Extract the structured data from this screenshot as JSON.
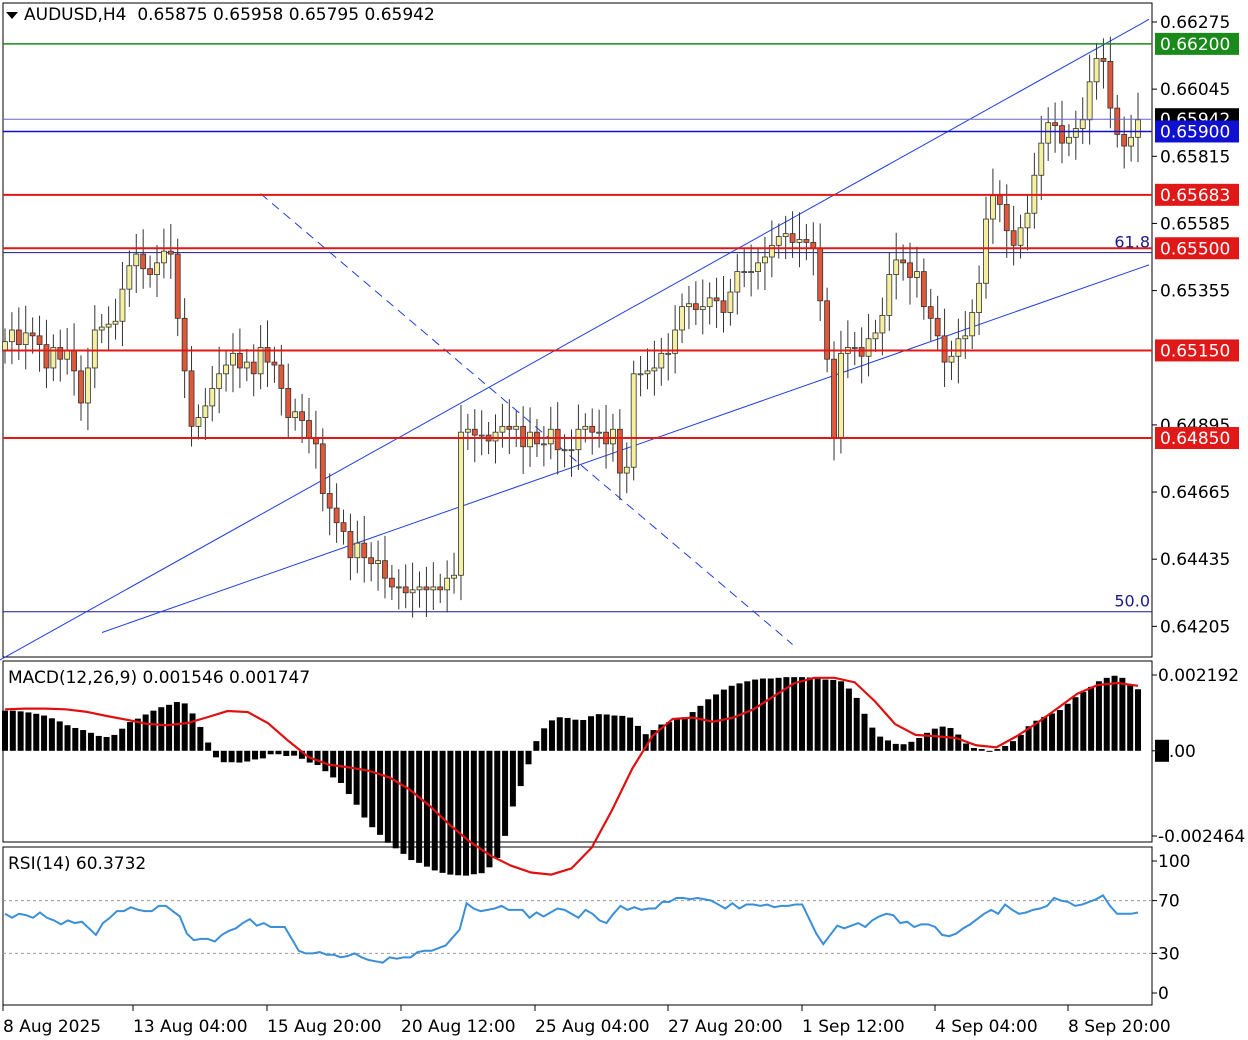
{
  "header": {
    "symbol": "AUDUSD,H4",
    "ohlc": [
      "0.65875",
      "0.65958",
      "0.65795",
      "0.65942"
    ]
  },
  "colors": {
    "bull_body": "#f5f0a0",
    "bear_body": "#e0583a",
    "wick": "#333333",
    "channel": "#1f3ee0",
    "level_red": "#e01818",
    "level_green": "#1a8a1a",
    "level_blue": "#1010d0",
    "fib_line": "#1a1a8a",
    "macd_hist": "#000000",
    "macd_signal": "#e01010",
    "rsi_line": "#3a8fd8"
  },
  "chart_data": [
    {
      "type": "candlestick",
      "title": "AUDUSD,H4",
      "ylim": [
        0.641,
        0.6634
      ],
      "price_ticks": [
        "0.66275",
        "0.66045",
        "0.65815",
        "0.65585",
        "0.65355",
        "0.64895",
        "0.64665",
        "0.64435",
        "0.64205"
      ],
      "x_ticks": [
        "8 Aug 2025",
        "13 Aug 04:00",
        "15 Aug 20:00",
        "20 Aug 12:00",
        "25 Aug 04:00",
        "27 Aug 20:00",
        "1 Sep 12:00",
        "4 Sep 04:00",
        "8 Sep 20:00"
      ],
      "levels": [
        {
          "label": "0.66200",
          "value": 0.662,
          "kind": "green"
        },
        {
          "label": "0.65942",
          "value": 0.65942,
          "kind": "current"
        },
        {
          "label": "0.65900",
          "value": 0.659,
          "kind": "blue"
        },
        {
          "label": "0.65683",
          "value": 0.65683,
          "kind": "red"
        },
        {
          "label": "0.65500",
          "value": 0.655,
          "kind": "red"
        },
        {
          "label": "0.65150",
          "value": 0.6515,
          "kind": "red"
        },
        {
          "label": "0.64850",
          "value": 0.6485,
          "kind": "red"
        }
      ],
      "fibonacci": [
        {
          "label": "61.8",
          "value": 0.65485
        },
        {
          "label": "50.0",
          "value": 0.64255
        }
      ],
      "channel": {
        "upper": [
          [
            0,
            0.6409
          ],
          [
            1149,
            0.66284
          ]
        ],
        "lower": [
          [
            102,
            0.64184
          ],
          [
            1149,
            0.65443
          ]
        ]
      },
      "trendline": [
        [
          37,
          0.65687
        ],
        [
          114,
          0.64143
        ]
      ],
      "closes": [
        0.6518,
        0.6522,
        0.6517,
        0.6521,
        0.652,
        0.6517,
        0.6509,
        0.6516,
        0.6512,
        0.6515,
        0.6508,
        0.6497,
        0.6509,
        0.6522,
        0.6523,
        0.6524,
        0.6525,
        0.6536,
        0.6544,
        0.6548,
        0.6543,
        0.6541,
        0.6545,
        0.6549,
        0.6548,
        0.6526,
        0.6508,
        0.6489,
        0.6492,
        0.6496,
        0.6502,
        0.6507,
        0.651,
        0.6514,
        0.6509,
        0.6511,
        0.6507,
        0.6516,
        0.6511,
        0.651,
        0.6502,
        0.6492,
        0.6494,
        0.6491,
        0.6485,
        0.6483,
        0.6466,
        0.6461,
        0.6456,
        0.6453,
        0.6444,
        0.6449,
        0.6444,
        0.6442,
        0.6443,
        0.6437,
        0.6434,
        0.6434,
        0.6432,
        0.6433,
        0.6434,
        0.6433,
        0.6434,
        0.6433,
        0.6437,
        0.6438,
        0.6487,
        0.6488,
        0.6486,
        0.6486,
        0.6484,
        0.6487,
        0.6489,
        0.6488,
        0.6489,
        0.6482,
        0.6487,
        0.6483,
        0.6483,
        0.6488,
        0.6481,
        0.6481,
        0.6481,
        0.6488,
        0.6489,
        0.6487,
        0.6487,
        0.6483,
        0.6488,
        0.6473,
        0.6475,
        0.6507,
        0.6507,
        0.6508,
        0.6509,
        0.6514,
        0.6514,
        0.6522,
        0.653,
        0.6531,
        0.6529,
        0.653,
        0.6533,
        0.6532,
        0.6528,
        0.6535,
        0.6542,
        0.6542,
        0.6542,
        0.6545,
        0.6547,
        0.6551,
        0.6554,
        0.6555,
        0.6552,
        0.6553,
        0.6552,
        0.655,
        0.6532,
        0.6512,
        0.6485,
        0.6514,
        0.6516,
        0.6516,
        0.6513,
        0.6519,
        0.6521,
        0.6527,
        0.6541,
        0.6546,
        0.6545,
        0.654,
        0.6542,
        0.653,
        0.6526,
        0.652,
        0.6511,
        0.6513,
        0.6519,
        0.652,
        0.6528,
        0.6538,
        0.656,
        0.6568,
        0.6565,
        0.6556,
        0.6551,
        0.6557,
        0.6562,
        0.6575,
        0.6586,
        0.6593,
        0.6592,
        0.6586,
        0.6588,
        0.6591,
        0.6594,
        0.6607,
        0.6615,
        0.6614,
        0.6598,
        0.6589,
        0.6585,
        0.6588,
        0.6594
      ],
      "highs_lows": "estimated from candle wicks"
    },
    {
      "type": "bar",
      "title": "MACD(12,26,9) 0.001546 0.001747",
      "name": "MACD(12,26,9)",
      "values_label": [
        "0.001546",
        "0.001747"
      ],
      "ylim": [
        -0.002464,
        0.002192
      ],
      "y_ticks": [
        "0.002192",
        "0.00",
        "-0.002464"
      ],
      "histogram": [
        0.00116,
        0.00116,
        0.00114,
        0.00111,
        0.00107,
        0.00102,
        0.00094,
        0.00085,
        0.00074,
        0.00066,
        0.0006,
        0.00052,
        0.00043,
        0.0004,
        0.00046,
        0.00064,
        0.00083,
        0.00093,
        0.00105,
        0.00116,
        0.00126,
        0.00133,
        0.00141,
        0.00137,
        0.00108,
        0.00069,
        0.00024,
        -0.00019,
        -0.00033,
        -0.00033,
        -0.00034,
        -0.00031,
        -0.00025,
        -0.00022,
        -0.0001,
        -0.0001,
        -0.00015,
        -0.00014,
        -0.00023,
        -0.00034,
        -0.00041,
        -0.00059,
        -0.00077,
        -0.00093,
        -0.00125,
        -0.00156,
        -0.00193,
        -0.00221,
        -0.00243,
        -0.00266,
        -0.00282,
        -0.00298,
        -0.00316,
        -0.00324,
        -0.00335,
        -0.00346,
        -0.00353,
        -0.00358,
        -0.0036,
        -0.00361,
        -0.00357,
        -0.00354,
        -0.00337,
        -0.0031,
        -0.00246,
        -0.00161,
        -0.00102,
        -0.00039,
        0.00028,
        0.00065,
        0.00088,
        0.00097,
        0.00095,
        0.0009,
        0.00089,
        0.001,
        0.00106,
        0.00105,
        0.00102,
        0.00101,
        0.00096,
        0.00072,
        0.00048,
        0.0006,
        0.00076,
        0.00083,
        0.00091,
        0.00097,
        0.00112,
        0.0013,
        0.00149,
        0.00163,
        0.00177,
        0.00188,
        0.00195,
        0.00201,
        0.00206,
        0.00209,
        0.00209,
        0.00211,
        0.00213,
        0.00213,
        0.00213,
        0.00212,
        0.00209,
        0.00206,
        0.00205,
        0.00201,
        0.0018,
        0.00153,
        0.00107,
        0.00067,
        0.00041,
        0.0003,
        0.0002,
        0.00019,
        0.00026,
        0.00037,
        0.00052,
        0.00064,
        0.0007,
        0.00066,
        0.00047,
        0.00021,
        8e-05,
        5e-05,
        -2e-05,
        5e-05,
        0.00014,
        0.00028,
        0.00046,
        0.00071,
        0.00087,
        0.00098,
        0.00108,
        0.00118,
        0.00136,
        0.00155,
        0.0017,
        0.00185,
        0.00201,
        0.00211,
        0.00217,
        0.00211,
        0.00193,
        0.00178
      ],
      "signal": [
        0.0012,
        0.00122,
        0.00122,
        0.0012,
        0.00113,
        0.00101,
        0.0009,
        0.00078,
        0.00074,
        0.0008,
        0.00097,
        0.00115,
        0.00112,
        0.0008,
        0.00029,
        -0.00018,
        -0.0004,
        -0.00048,
        -0.00058,
        -0.00077,
        -0.00112,
        -0.0016,
        -0.00215,
        -0.00264,
        -0.00303,
        -0.00332,
        -0.00352,
        -0.00358,
        -0.0034,
        -0.0028,
        -0.00172,
        -0.00052,
        0.00043,
        0.00092,
        0.00096,
        0.00084,
        0.00096,
        0.0012,
        0.00158,
        0.00195,
        0.00211,
        0.00211,
        0.00198,
        0.00143,
        0.00077,
        0.00046,
        0.00042,
        0.00037,
        0.00016,
        0.0001,
        0.00042,
        0.0008,
        0.00122,
        0.00165,
        0.0019,
        0.00196,
        0.00188
      ],
      "signal_note": "signal line sampled every third bar"
    },
    {
      "type": "line",
      "title": "RSI(14) 60.3732",
      "name": "RSI(14)",
      "value_label": "60.3732",
      "ylim": [
        0,
        100
      ],
      "y_ticks": [
        "100",
        "70",
        "30",
        "0"
      ],
      "reference_levels": [
        70,
        30
      ],
      "values": [
        60,
        57,
        60,
        59,
        57,
        61,
        57,
        55,
        52,
        55,
        53,
        54,
        49,
        44,
        53,
        57,
        62,
        62,
        65,
        63,
        62,
        62,
        66,
        66,
        62,
        58,
        45,
        40,
        41,
        41,
        39,
        44,
        47,
        49,
        53,
        56,
        51,
        53,
        50,
        50,
        50,
        41,
        32,
        30,
        30,
        31,
        29,
        29,
        27,
        28,
        30,
        27,
        25,
        24,
        23,
        27,
        26,
        27,
        27,
        31,
        32,
        32,
        34,
        36,
        42,
        48,
        68,
        64,
        62,
        63,
        64,
        66,
        63,
        63,
        63,
        57,
        61,
        58,
        61,
        64,
        63,
        60,
        57,
        63,
        60,
        55,
        53,
        60,
        66,
        63,
        65,
        63,
        64,
        64,
        69,
        69,
        72,
        72,
        71,
        72,
        71,
        70,
        67,
        64,
        68,
        64,
        67,
        67,
        66,
        67,
        65,
        66,
        66,
        67,
        67,
        56,
        45,
        37,
        44,
        51,
        49,
        51,
        53,
        50,
        55,
        58,
        60,
        59,
        53,
        54,
        50,
        52,
        52,
        50,
        44,
        43,
        45,
        49,
        52,
        56,
        60,
        63,
        60,
        67,
        63,
        60,
        61,
        63,
        64,
        66,
        72,
        70,
        69,
        66,
        67,
        69,
        71,
        74,
        66,
        60,
        60,
        60,
        61
      ]
    }
  ]
}
